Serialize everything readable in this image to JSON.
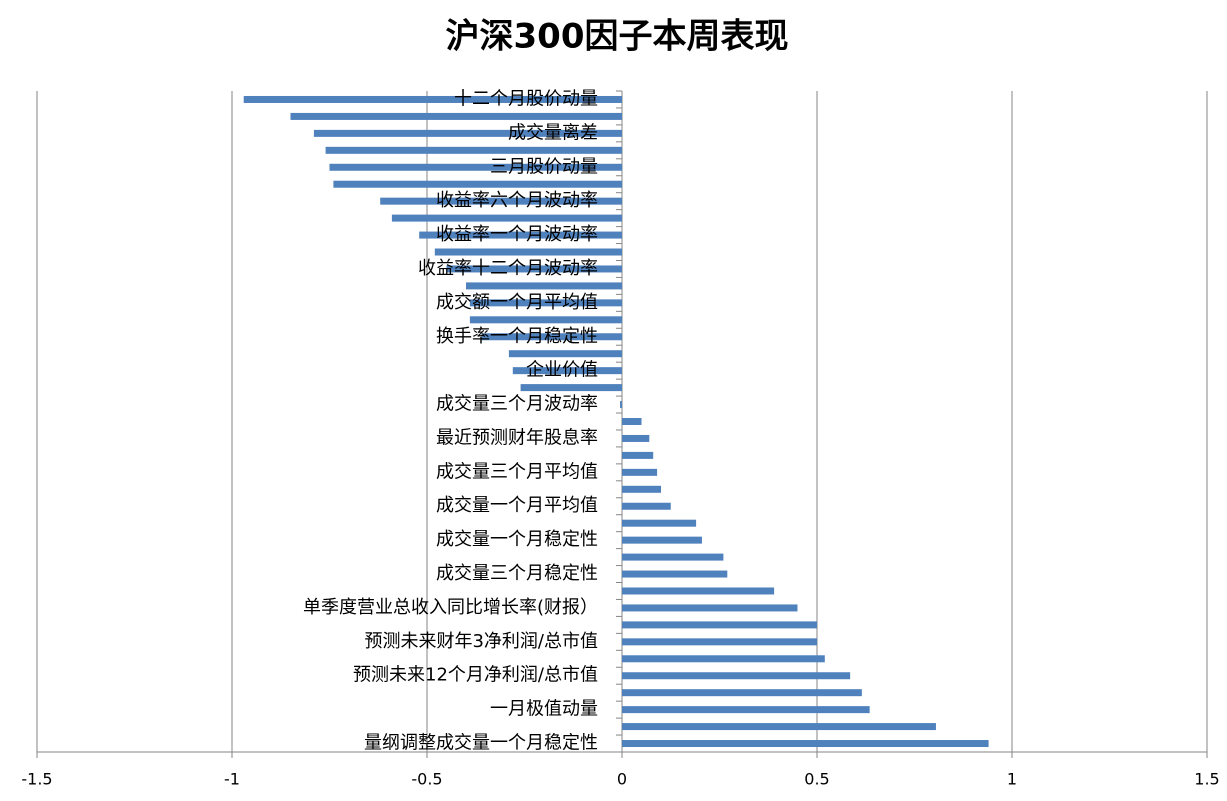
{
  "chart_data": {
    "type": "barh",
    "title": "沪深300因子本周表现",
    "categories": [
      "十二个月股价动量",
      null,
      "成交量离差",
      null,
      "三月股价动量",
      null,
      "收益率六个月波动率",
      null,
      "收益率一个月波动率",
      null,
      "收益率十二个月波动率",
      null,
      "成交额一个月平均值",
      null,
      "换手率一个月稳定性",
      null,
      "企业价值",
      null,
      "成交量三个月波动率",
      null,
      "最近预测财年股息率",
      null,
      "成交量三个月平均值",
      null,
      "成交量一个月平均值",
      null,
      "成交量一个月稳定性",
      null,
      "成交量三个月稳定性",
      null,
      "单季度营业总收入同比增长率(财报）",
      null,
      "预测未来财年3净利润/总市值",
      null,
      "预测未来12个月净利润/总市值",
      null,
      "一月极值动量",
      null,
      "量纲调整成交量一个月稳定性"
    ],
    "values": [
      -0.97,
      -0.85,
      -0.79,
      -0.76,
      -0.75,
      -0.74,
      -0.62,
      -0.59,
      -0.52,
      -0.48,
      -0.45,
      -0.4,
      -0.39,
      -0.39,
      -0.36,
      -0.29,
      -0.28,
      -0.26,
      -0.005,
      0.05,
      0.07,
      0.08,
      0.09,
      0.1,
      0.125,
      0.19,
      0.205,
      0.26,
      0.27,
      0.39,
      0.45,
      0.5,
      0.5,
      0.52,
      0.585,
      0.615,
      0.635,
      0.805,
      0.94
    ],
    "color": "#4f81bd",
    "xlim": [
      -1.5,
      1.5
    ],
    "xticks": [
      -1.5,
      -1,
      -0.5,
      0,
      0.5,
      1,
      1.5
    ],
    "grid": true
  }
}
